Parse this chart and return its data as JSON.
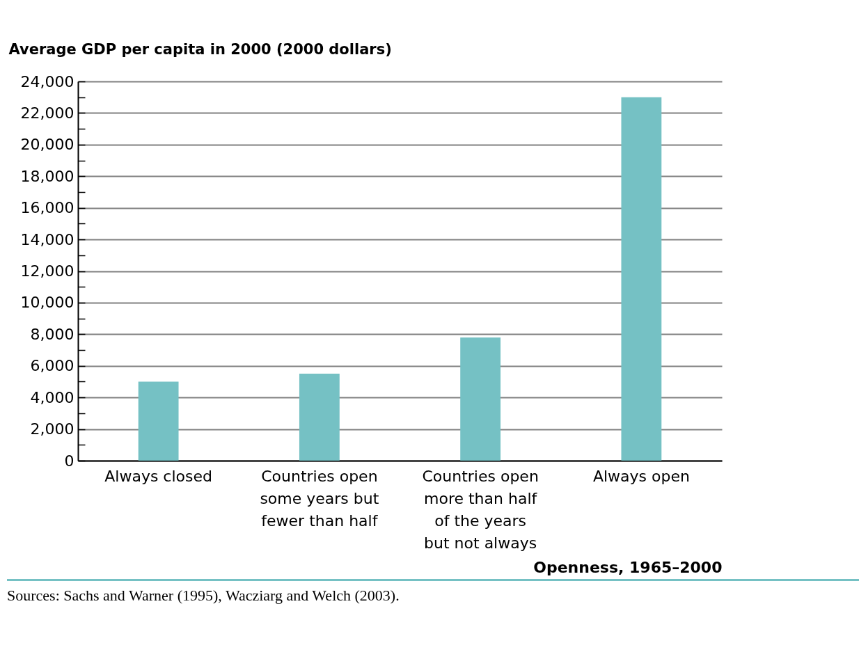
{
  "chart_data": {
    "type": "bar",
    "ylabel": "Average GDP per capita in 2000 (2000 dollars)",
    "xlabel": "Openness, 1965–2000",
    "categories": [
      "Always closed",
      "Countries open some years but fewer than half",
      "Countries open more than half of the years but not always",
      "Always open"
    ],
    "values": [
      5000,
      5500,
      7800,
      23000
    ],
    "color": "#75c1c4",
    "ylim": [
      0,
      24000
    ],
    "yticks": [
      {
        "value": 0,
        "label": "0"
      },
      {
        "value": 1000,
        "label": null
      },
      {
        "value": 2000,
        "label": "2,000"
      },
      {
        "value": 3000,
        "label": null
      },
      {
        "value": 4000,
        "label": "4,000"
      },
      {
        "value": 5000,
        "label": null
      },
      {
        "value": 6000,
        "label": "6,000"
      },
      {
        "value": 7000,
        "label": null
      },
      {
        "value": 8000,
        "label": "8,000"
      },
      {
        "value": 9000,
        "label": null
      },
      {
        "value": 10000,
        "label": "10,000"
      },
      {
        "value": 11000,
        "label": null
      },
      {
        "value": 12000,
        "label": "12,000"
      },
      {
        "value": 13000,
        "label": null
      },
      {
        "value": 14000,
        "label": "14,000"
      },
      {
        "value": 15000,
        "label": null
      },
      {
        "value": 16000,
        "label": "16,000"
      },
      {
        "value": 17000,
        "label": null
      },
      {
        "value": 18000,
        "label": "18,000"
      },
      {
        "value": 19000,
        "label": null
      },
      {
        "value": 20000,
        "label": "20,000"
      },
      {
        "value": 21000,
        "label": null
      },
      {
        "value": 22000,
        "label": "22,000"
      },
      {
        "value": 23000,
        "label": null
      },
      {
        "value": 24000,
        "label": "24,000"
      }
    ],
    "grid": "y",
    "annotations": [
      "Sources: Sachs and Warner (1995), Wacziarg and Welch (2003)."
    ]
  }
}
